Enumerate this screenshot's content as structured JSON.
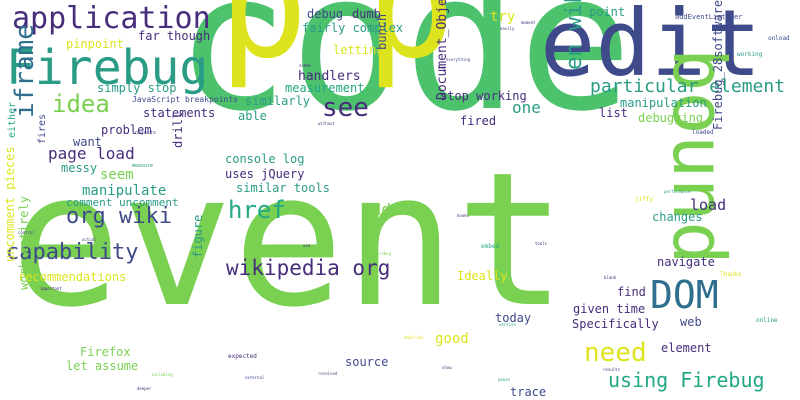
{
  "palette": {
    "yellow": "#dde41e",
    "lime": "#7ad151",
    "green": "#4cc26c",
    "teal": "#2a9c86",
    "blue": "#2f6f8e",
    "indigo": "#3f4a8a",
    "purple": "#472d7b",
    "sea": "#22a884"
  },
  "words": {
    "code": "code",
    "event": "event",
    "p1": "p",
    "p2": "p",
    "edit": "edit",
    "bound": "bound",
    "firebug": "Firebug",
    "application": "application",
    "dom": "DOM",
    "en_wikipedia": "en wikipedia",
    "iframe": "iframe",
    "need": "need",
    "using_firebug": "using Firebug",
    "wikipedia_org": "wikipedia org",
    "capability": "capability",
    "href": "href",
    "see": "see",
    "idea": "idea",
    "org_wiki": "org wiki",
    "particular_element": "particular element",
    "document_object_model": "Document_Object_Model",
    "firebug_28software": "Firebug_28software",
    "uncomment_pieces": "uncomment pieces",
    "work_entirely": "work entirely",
    "page_load": "page load",
    "load": "load",
    "add": "add",
    "manipulate": "manipulate",
    "seem": "seem",
    "one": "one",
    "handlers": "handlers",
    "try": "try",
    "debug": "debug",
    "dumb": "dumb",
    "fairly_complex": "fairly complex",
    "far_though": "far though",
    "pinpoint": "pinpoint",
    "simply_stop": "simply stop",
    "javascript_breakpoints": "JavaScript breakpoints",
    "statements": "statements",
    "problem": "problem",
    "want": "want",
    "messy": "messy",
    "comment_uncomment": "comment uncomment",
    "console_log": "console log",
    "uses_jquery": "uses jQuery",
    "similar_tools": "similar tools",
    "measurement": "measurement",
    "similarly": "similarly",
    "able": "able",
    "letting": "letting",
    "bunch": "bunch",
    "stop_working": "stop working",
    "fired": "fired",
    "list": "list",
    "manipulation": "manipulation",
    "debugging": "debugging",
    "point": "point",
    "changes": "changes",
    "navigate": "navigate",
    "find": "find",
    "given_time": "given time",
    "specifically": "Specifically",
    "web": "web",
    "element": "element",
    "today": "today",
    "good": "good",
    "source": "source",
    "trace": "trace",
    "ideally": "Ideally",
    "firefox": "Firefox",
    "let_assume": "let assume",
    "recommendations": "recommendations",
    "figure": "figure",
    "drill": "drill",
    "either": "either",
    "fires": "fires",
    "addeventlistener": "addEventListener",
    "onload": "onload",
    "working": "working",
    "loaded": "loaded",
    "online": "online",
    "thanks": "Thanks",
    "embed": "embed",
    "jiffy": "jiffy",
    "performance": "performance",
    "expected": "expected",
    "objects": "objects",
    "measure": "measure",
    "actual": "actual",
    "control": "control",
    "modified": "modified",
    "without": "without",
    "everything": "everything",
    "moment": "moment",
    "easily": "easily",
    "including": "including",
    "deeper": "deeper",
    "received": "received",
    "external": "external",
    "results": "results",
    "show": "show",
    "version": "version",
    "hooks": "hooks",
    "tools": "tools",
    "blank": "blank",
    "pause": "pause",
    "important": "important",
    "firebug2": "firebug",
    "seems": "seems",
    "bug": "bug",
    "use": "use"
  }
}
